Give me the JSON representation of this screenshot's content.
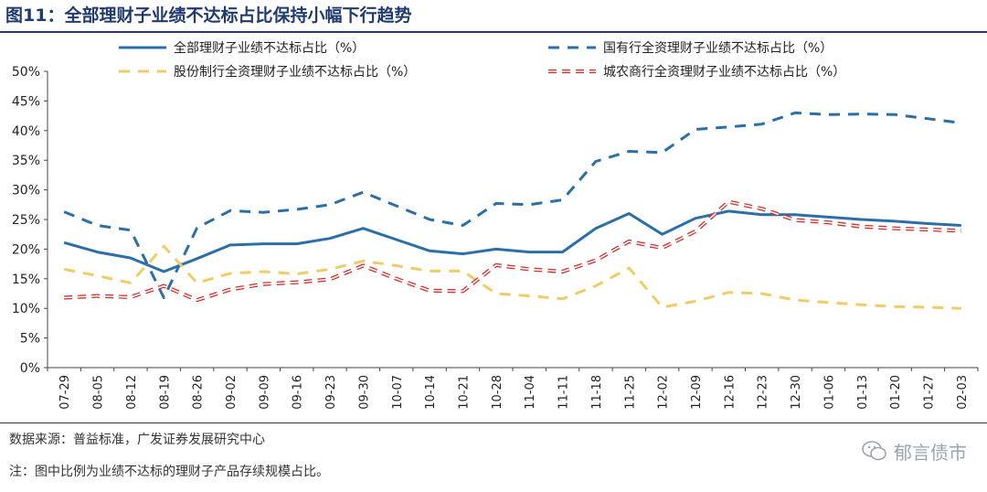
{
  "figure_title": "图11：全部理财子业绩不达标占比保持小幅下行趋势",
  "source_text": "数据来源：普益标准，广发证券发展研究中心",
  "note_text": "注：图中比例为业绩不达标的理财子产品存续规模占比。",
  "watermark_text": "郁言债市",
  "chart_data": {
    "type": "line",
    "title": "",
    "xlabel": "",
    "ylabel": "",
    "ylim": [
      0,
      50
    ],
    "yticks": [
      "0%",
      "5%",
      "10%",
      "15%",
      "20%",
      "25%",
      "30%",
      "35%",
      "40%",
      "45%",
      "50%"
    ],
    "categories": [
      "07-29",
      "08-05",
      "08-12",
      "08-19",
      "08-26",
      "09-02",
      "09-09",
      "09-16",
      "09-23",
      "09-30",
      "10-07",
      "10-14",
      "10-21",
      "10-28",
      "11-04",
      "11-11",
      "11-18",
      "11-25",
      "12-02",
      "12-09",
      "12-16",
      "12-23",
      "12-30",
      "01-06",
      "01-13",
      "01-20",
      "01-27",
      "02-03"
    ],
    "series": [
      {
        "name": "全部理财子业绩不达标占比（%）",
        "color": "#2a6fa8",
        "style": "solid",
        "values": [
          21.1,
          19.5,
          18.5,
          16.2,
          18.4,
          20.7,
          20.9,
          20.9,
          21.8,
          23.5,
          21.6,
          19.7,
          19.2,
          20.0,
          19.5,
          19.5,
          23.5,
          26.0,
          22.5,
          25.2,
          26.4,
          25.8,
          25.8,
          25.4,
          25.0,
          24.7,
          24.3,
          24.0
        ]
      },
      {
        "name": "国有行全资理财子业绩不达标占比（%）",
        "color": "#2a6fa8",
        "style": "dashed",
        "values": [
          26.3,
          24.0,
          23.2,
          11.8,
          23.6,
          26.5,
          26.2,
          26.7,
          27.5,
          29.6,
          27.3,
          25.0,
          24.0,
          27.7,
          27.5,
          28.3,
          34.8,
          36.5,
          36.3,
          40.2,
          40.6,
          41.1,
          43.0,
          42.7,
          42.8,
          42.7,
          42.0,
          41.3
        ]
      },
      {
        "name": "股份制行全资理财子业绩不达标占比（%）",
        "color": "#f0cc66",
        "style": "dashed",
        "values": [
          16.6,
          15.5,
          14.3,
          20.5,
          14.3,
          15.9,
          16.2,
          15.8,
          16.6,
          18.0,
          17.2,
          16.3,
          16.3,
          12.5,
          12.1,
          11.6,
          13.8,
          16.8,
          10.2,
          11.2,
          12.7,
          12.5,
          11.4,
          11.0,
          10.6,
          10.3,
          10.2,
          10.0
        ]
      },
      {
        "name": "城农商行全资理财子业绩不达标占比（%）",
        "color": "#d62f2f",
        "style": "dashed-outline",
        "values": [
          11.8,
          12.1,
          11.9,
          13.8,
          11.4,
          13.2,
          14.1,
          14.4,
          14.9,
          17.2,
          15.0,
          13.0,
          12.9,
          17.3,
          16.6,
          16.2,
          18.1,
          21.3,
          20.2,
          23.0,
          28.0,
          26.8,
          24.9,
          24.5,
          23.8,
          23.5,
          23.3,
          23.1
        ]
      }
    ],
    "legend_position": "top",
    "grid": false
  }
}
